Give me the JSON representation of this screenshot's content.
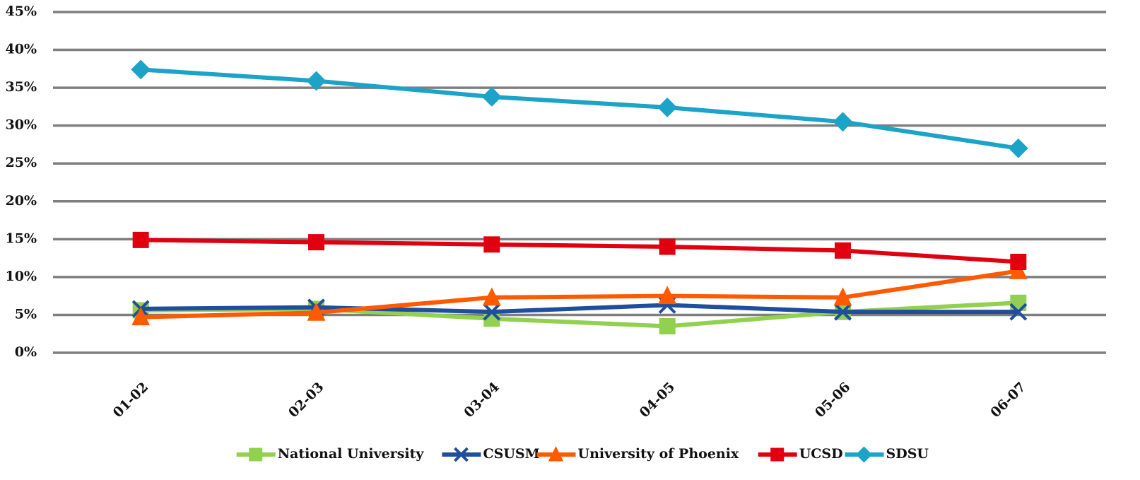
{
  "chart_data": {
    "type": "line",
    "categories": [
      "01-02",
      "02-03",
      "03-04",
      "04-05",
      "05-06",
      "06-07"
    ],
    "series": [
      {
        "name": "National University",
        "color": "#92d050",
        "marker": "square",
        "values": [
          5.6,
          5.8,
          4.5,
          3.5,
          5.4,
          6.6
        ]
      },
      {
        "name": "CSUSM",
        "color": "#1f4e9c",
        "marker": "x",
        "values": [
          5.8,
          6.0,
          5.4,
          6.3,
          5.4,
          5.4
        ]
      },
      {
        "name": "University of Phoenix",
        "color": "#ff5a00",
        "marker": "triangle",
        "values": [
          4.7,
          5.3,
          7.3,
          7.5,
          7.3,
          10.8
        ]
      },
      {
        "name": "UCSD",
        "color": "#e00010",
        "marker": "square",
        "values": [
          14.9,
          14.6,
          14.3,
          14.0,
          13.5,
          12.0
        ]
      },
      {
        "name": "SDSU",
        "color": "#1ca3c8",
        "marker": "diamond",
        "values": [
          37.4,
          35.9,
          33.8,
          32.4,
          30.5,
          27.0
        ]
      }
    ],
    "ylim": [
      0,
      45
    ],
    "yticks": [
      {
        "value": 0,
        "label": "0%"
      },
      {
        "value": 5,
        "label": "5%"
      },
      {
        "value": 10,
        "label": "10%"
      },
      {
        "value": 15,
        "label": "15%"
      },
      {
        "value": 20,
        "label": "20%"
      },
      {
        "value": 25,
        "label": "25%"
      },
      {
        "value": 30,
        "label": "30%"
      },
      {
        "value": 35,
        "label": "35%"
      },
      {
        "value": 40,
        "label": "40%"
      },
      {
        "value": 45,
        "label": "45%"
      }
    ],
    "grid": true,
    "legend": "bottom"
  }
}
